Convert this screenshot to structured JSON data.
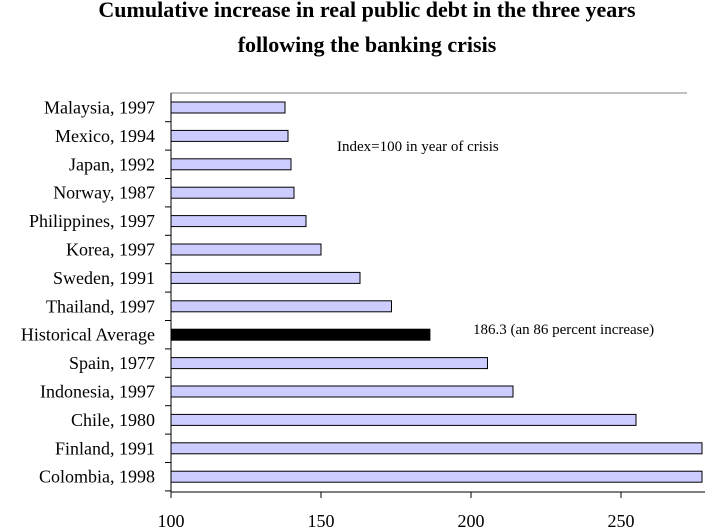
{
  "chart_data": {
    "type": "bar",
    "orientation": "horizontal",
    "title": [
      "Cumulative increase in real public debt in the three years",
      "following the banking crisis"
    ],
    "xlabel": "",
    "ylabel": "",
    "categories": [
      "Malaysia, 1997",
      "Mexico, 1994",
      "Japan, 1992",
      "Norway, 1987",
      "Philippines, 1997",
      "Korea, 1997",
      "Sweden, 1991",
      "Thailand, 1997",
      "Historical Average",
      "Spain, 1977",
      "Indonesia, 1997",
      "Chile, 1980",
      "Finland, 1991",
      "Colombia, 1998"
    ],
    "values": [
      138,
      139,
      140,
      141,
      145,
      150,
      163,
      173.5,
      186.3,
      205.5,
      214,
      255,
      277,
      277
    ],
    "highlight_category": "Historical Average",
    "xlim": [
      100,
      278
    ],
    "xticks": [
      100,
      150,
      200,
      250
    ],
    "grid": false,
    "colors": {
      "bar": "#ccccff",
      "highlight": "#000000",
      "outline": "#000000"
    },
    "annotations": [
      {
        "text": "Index=100 in year of crisis"
      },
      {
        "text": "186.3 (an 86 percent increase)"
      }
    ]
  }
}
